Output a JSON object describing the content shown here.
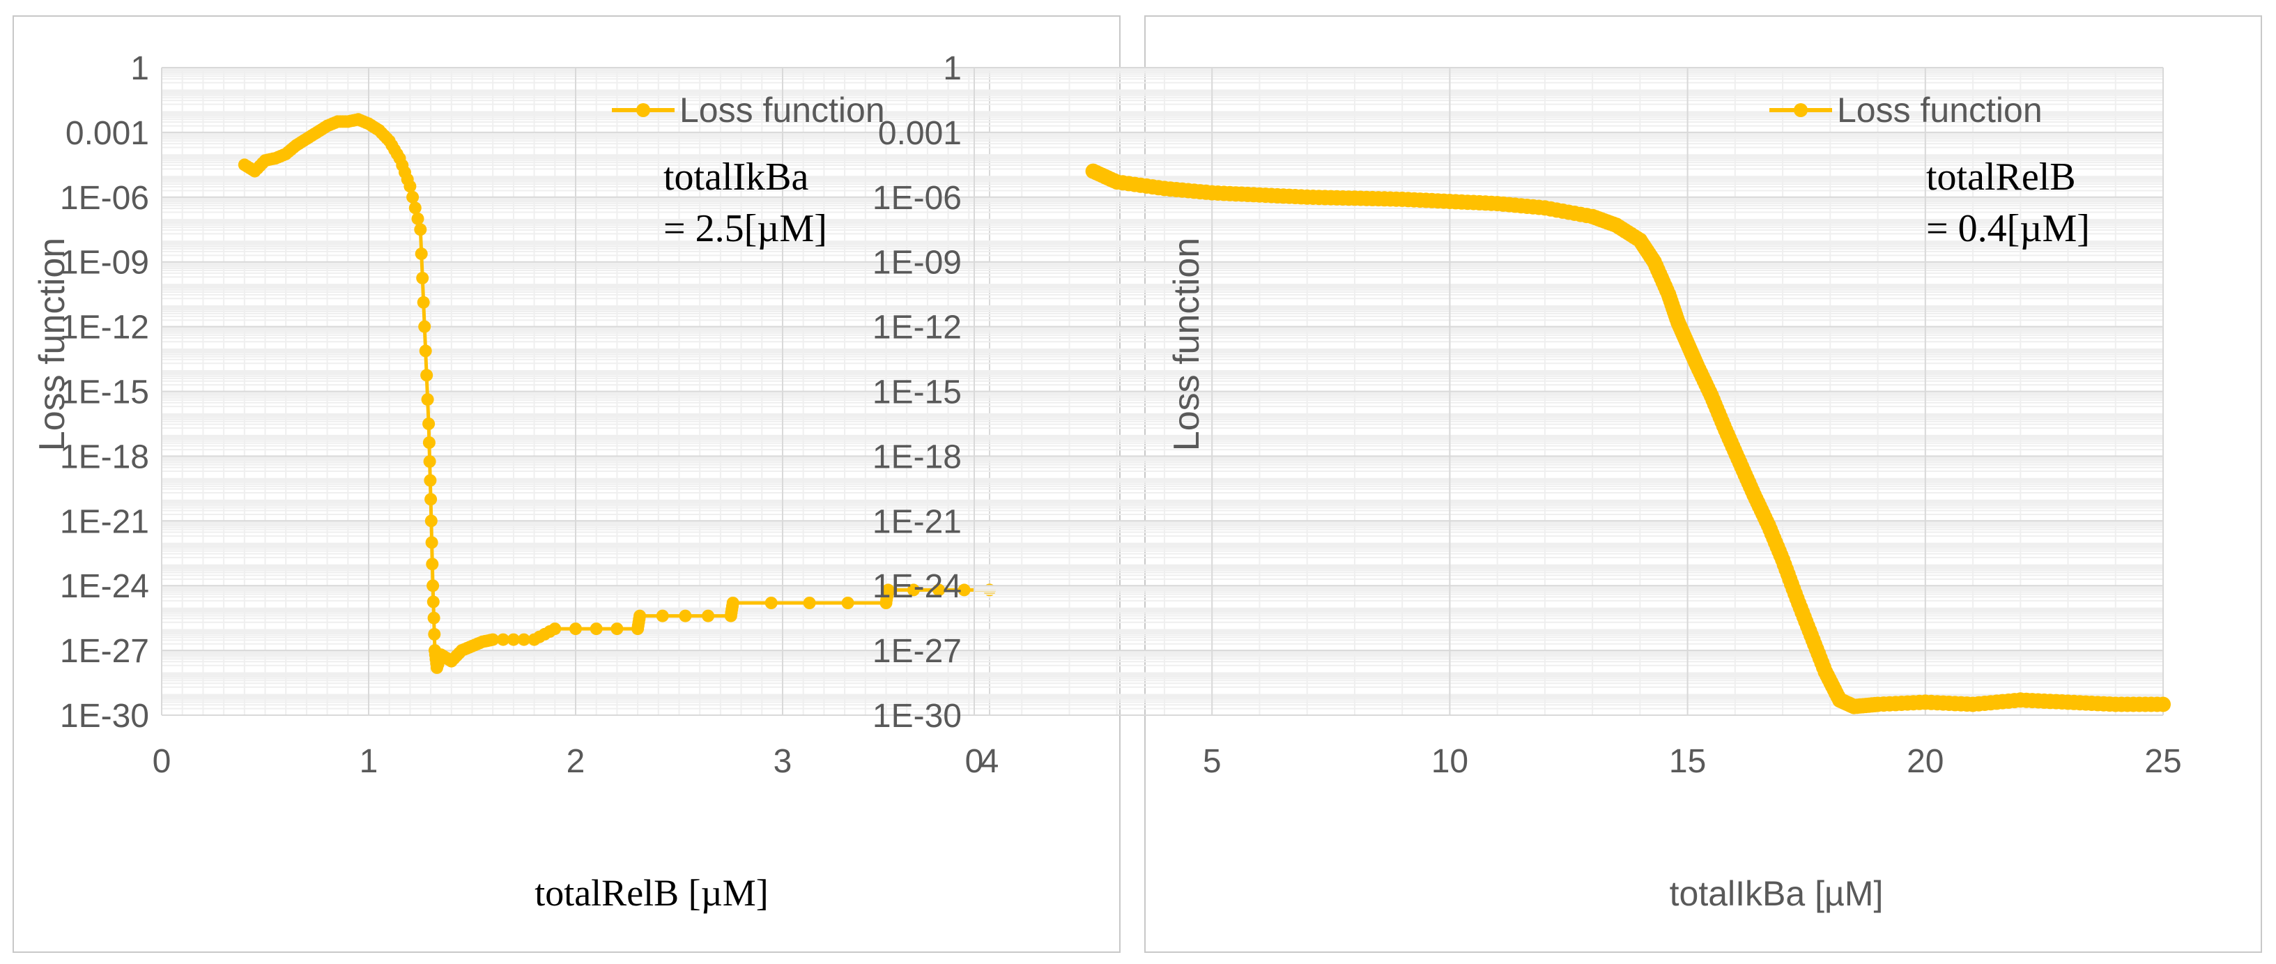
{
  "chart_data": [
    {
      "type": "scatter",
      "ylabel": "Loss function",
      "xlabel": "totalRelB  [µM]",
      "xlim": [
        0,
        4
      ],
      "ylim_log10": [
        -30,
        0
      ],
      "xticks": [
        "0",
        "1",
        "2",
        "3",
        "4"
      ],
      "yticks": [
        "1",
        "0.001",
        "1E-06",
        "1E-09",
        "1E-12",
        "1E-15",
        "1E-18",
        "1E-21",
        "1E-24",
        "1E-27",
        "1E-30"
      ],
      "legend": "Loss function",
      "legend_position": "top-right",
      "annotation": [
        "totalIkBa",
        "= 2.5[µM]"
      ],
      "series_color": "#FFC000",
      "series": {
        "name": "Loss function",
        "x": [
          0.4,
          0.45,
          0.5,
          0.55,
          0.6,
          0.65,
          0.7,
          0.75,
          0.8,
          0.85,
          0.9,
          0.95,
          1.0,
          1.05,
          1.1,
          1.15,
          1.2,
          1.25,
          1.27,
          1.29,
          1.3,
          1.31,
          1.32,
          1.33,
          1.35,
          1.4,
          1.45,
          1.5,
          1.55,
          1.6,
          1.8,
          1.9,
          2.3,
          2.31,
          2.75,
          2.76,
          3.5,
          3.51,
          4.0
        ],
        "log10": [
          -4.5,
          -4.8,
          -4.3,
          -4.2,
          -4.0,
          -3.6,
          -3.3,
          -3.0,
          -2.7,
          -2.5,
          -2.5,
          -2.4,
          -2.6,
          -2.9,
          -3.4,
          -4.2,
          -5.5,
          -7.5,
          -12.0,
          -16.5,
          -20.0,
          -24.0,
          -27.0,
          -27.8,
          -27.2,
          -27.5,
          -27.0,
          -26.8,
          -26.6,
          -26.5,
          -26.5,
          -26.0,
          -26.0,
          -25.4,
          -25.4,
          -24.8,
          -24.8,
          -24.2,
          -24.2
        ]
      }
    },
    {
      "type": "scatter",
      "ylabel": "Loss function",
      "xlabel": "totalIkBa [µM]",
      "xlim": [
        0,
        25
      ],
      "ylim_log10": [
        -30,
        0
      ],
      "xticks": [
        "0",
        "5",
        "10",
        "15",
        "20",
        "25"
      ],
      "yticks": [
        "1",
        "0.001",
        "1E-06",
        "1E-09",
        "1E-12",
        "1E-15",
        "1E-18",
        "1E-21",
        "1E-24",
        "1E-27",
        "1E-30"
      ],
      "legend": "Loss function",
      "legend_position": "top-right",
      "annotation": [
        "totalRelB",
        "= 0.4[µM]"
      ],
      "series_color": "#FFC000",
      "series": {
        "name": "Loss function",
        "x": [
          2.5,
          3,
          4,
          5,
          6,
          7,
          8,
          9,
          10,
          11,
          12,
          13,
          13.5,
          14,
          14.3,
          14.6,
          14.8,
          15.0,
          15.2,
          15.5,
          15.8,
          16.1,
          16.4,
          16.7,
          17.0,
          17.3,
          17.6,
          17.9,
          18.2,
          18.5,
          19,
          20,
          21,
          22,
          23,
          24,
          25
        ],
        "log10": [
          -4.8,
          -5.3,
          -5.6,
          -5.8,
          -5.9,
          -6.0,
          -6.05,
          -6.1,
          -6.2,
          -6.3,
          -6.5,
          -6.9,
          -7.3,
          -8.0,
          -9.0,
          -10.5,
          -11.8,
          -12.8,
          -13.8,
          -15.2,
          -16.8,
          -18.3,
          -19.8,
          -21.2,
          -22.8,
          -24.6,
          -26.3,
          -28.0,
          -29.3,
          -29.6,
          -29.5,
          -29.4,
          -29.5,
          -29.3,
          -29.4,
          -29.5,
          -29.5
        ]
      }
    }
  ]
}
